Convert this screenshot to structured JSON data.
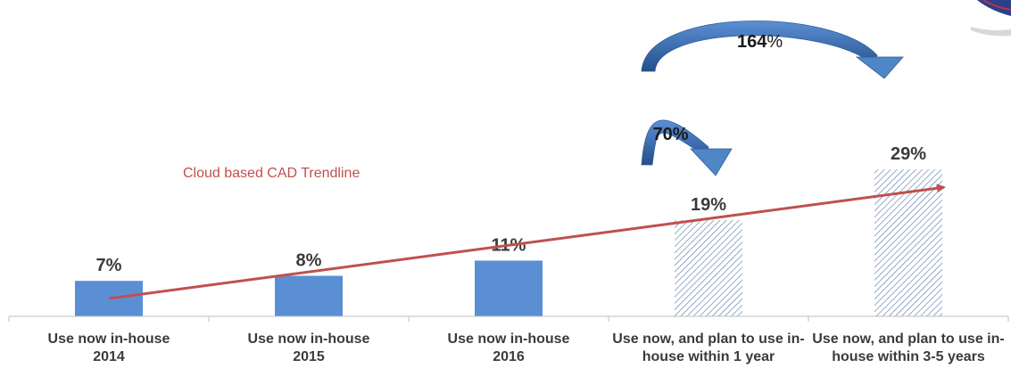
{
  "chart_data": {
    "type": "bar",
    "title": "",
    "xlabel": "",
    "ylabel": "",
    "ylim": [
      0,
      30
    ],
    "grid": false,
    "categories": [
      {
        "line1": "Use now in-house",
        "line2": "2014"
      },
      {
        "line1": "Use now in-house",
        "line2": "2015"
      },
      {
        "line1": "Use now in-house",
        "line2": "2016"
      },
      {
        "line1": "Use now, and plan to use in-",
        "line2": "house within 1 year"
      },
      {
        "line1": "Use now, and plan to use in-",
        "line2": "house within 3-5 years"
      }
    ],
    "values": [
      7,
      8,
      11,
      19,
      29
    ],
    "data_labels": [
      "7%",
      "8%",
      "11%",
      "19%",
      "29%"
    ],
    "bar_styles": [
      "solid",
      "solid",
      "solid",
      "hatched",
      "hatched"
    ],
    "bar_color": "#5b8fd4",
    "hatch_color": "#5b7fa8",
    "trendline": {
      "label": "Cloud based CAD Trendline",
      "color": "#c0504d",
      "from_category": 0,
      "to_category": 4
    },
    "growth_annotations": [
      {
        "value": "70",
        "unit": "%",
        "from_category": 3,
        "to_category": 3,
        "color": "#3c6fb0"
      },
      {
        "value": "164",
        "unit": "%",
        "from_category": 3,
        "to_category": 4,
        "color": "#3c6fb0"
      }
    ]
  }
}
